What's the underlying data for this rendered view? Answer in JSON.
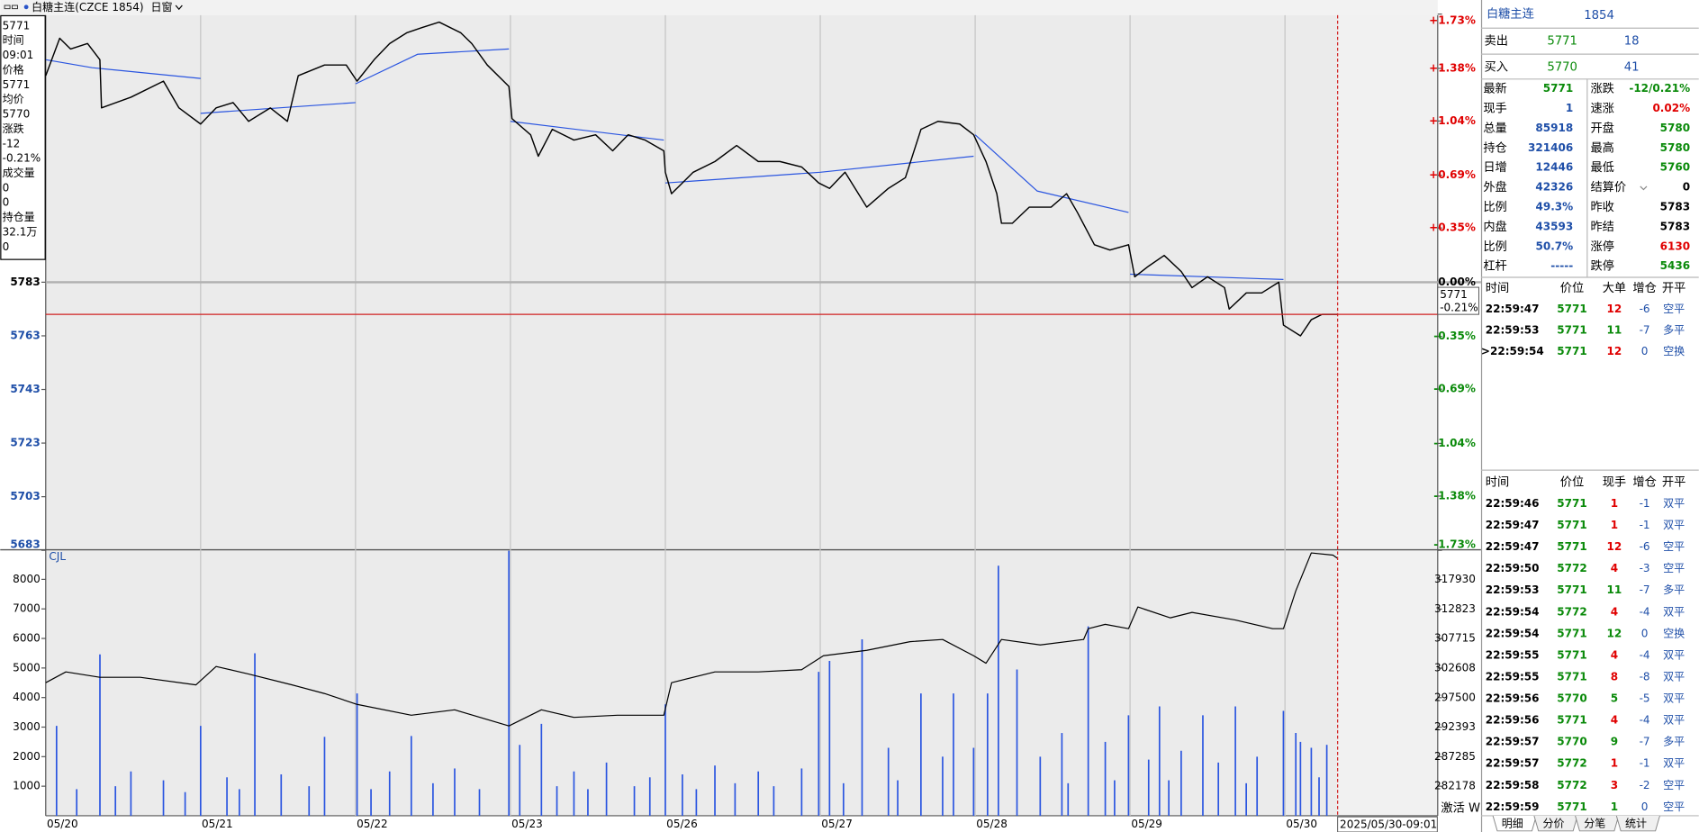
{
  "toolbar": {
    "title": "白糖主连(CZCE 1854)",
    "window_menu": "日窗"
  },
  "info_box": {
    "rows": [
      "5771",
      "时间",
      "09:01",
      "价格",
      "5771",
      "均价",
      "5770",
      "涨跌",
      "-12",
      "-0.21%",
      "成交量",
      "0",
      "0",
      "持仓量",
      "32.1万",
      "0"
    ]
  },
  "chart": {
    "dates": [
      "05/20",
      "05/21",
      "05/22",
      "05/23",
      "05/26",
      "05/27",
      "05/28",
      "05/29",
      "05/30"
    ],
    "price_axis": {
      "ylim": [
        5683,
        5883
      ],
      "ticks": [
        5783,
        5763,
        5743,
        5723,
        5703,
        5683
      ]
    },
    "percent_axis": {
      "ylim": [
        -1.73,
        1.73
      ],
      "ticks": [
        {
          "value": 1.73,
          "label": "+1.73%"
        },
        {
          "value": 1.38,
          "label": "+1.38%"
        },
        {
          "value": 1.04,
          "label": "+1.04%"
        },
        {
          "value": 0.69,
          "label": "+0.69%"
        },
        {
          "value": 0.35,
          "label": "+0.35%"
        },
        {
          "value": 0,
          "label": "0.00%"
        },
        {
          "value": -0.35,
          "label": "-0.35%"
        },
        {
          "value": -0.69,
          "label": "-0.69%"
        },
        {
          "value": -1.04,
          "label": "-1.04%"
        },
        {
          "value": -1.38,
          "label": "-1.38%"
        },
        {
          "value": -1.73,
          "label": "-1.73%"
        }
      ]
    },
    "cursor": {
      "price": 5771,
      "change": "-0.21%",
      "time": "2025/05/30-09:01"
    },
    "price_series": {
      "x": [
        0,
        0.09,
        0.16,
        0.27,
        0.35,
        0.36,
        0.55,
        0.76,
        0.86,
        1.0,
        1.1,
        1.21,
        1.31,
        1.45,
        1.56,
        1.63,
        1.8,
        1.94,
        2.01,
        2.12,
        2.22,
        2.33,
        2.43,
        2.54,
        2.68,
        2.75,
        2.85,
        2.99,
        3.01,
        3.13,
        3.18,
        3.27,
        3.41,
        3.55,
        3.66,
        3.76,
        3.87,
        3.99,
        4.0,
        4.04,
        4.18,
        4.32,
        4.46,
        4.6,
        4.74,
        4.88,
        4.99,
        5.06,
        5.16,
        5.3,
        5.44,
        5.55,
        5.65,
        5.76,
        5.9,
        5.99,
        6.07,
        6.14,
        6.17,
        6.24,
        6.35,
        6.49,
        6.59,
        6.66,
        6.77,
        6.87,
        6.99,
        7.03,
        7.12,
        7.22,
        7.33,
        7.4,
        7.5,
        7.61,
        7.64,
        7.75,
        7.85,
        7.96,
        7.99,
        8.1,
        8.17,
        8.24,
        8.34
      ],
      "values": [
        5860,
        5874,
        5870,
        5872,
        5866,
        5848,
        5852,
        5858,
        5848,
        5842,
        5848,
        5850,
        5843,
        5848,
        5843,
        5860,
        5864,
        5864,
        5858,
        5866,
        5872,
        5876,
        5878,
        5880,
        5876,
        5872,
        5864,
        5856,
        5844,
        5838,
        5830,
        5840,
        5836,
        5838,
        5832,
        5838,
        5836,
        5832,
        5824,
        5816,
        5824,
        5828,
        5834,
        5828,
        5828,
        5826,
        5820,
        5818,
        5824,
        5811,
        5818,
        5822,
        5840,
        5843,
        5842,
        5838,
        5828,
        5816,
        5805,
        5805,
        5811,
        5811,
        5816,
        5809,
        5797,
        5795,
        5797,
        5785,
        5789,
        5793,
        5787,
        5781,
        5785,
        5781,
        5773,
        5779,
        5779,
        5783,
        5767,
        5763,
        5769,
        5771,
        5771
      ]
    },
    "average_series": {
      "x": [
        0,
        0.3,
        1.0,
        null,
        1.0,
        2.0,
        null,
        2.0,
        2.4,
        2.99,
        null,
        3.0,
        3.99,
        null,
        4.0,
        5.0,
        5.99,
        null,
        6.0,
        6.4,
        6.99,
        null,
        7.0,
        7.99
      ],
      "values": [
        5866,
        5863,
        5859,
        null,
        5846,
        5850,
        null,
        5857,
        5868,
        5870,
        null,
        5843,
        5836,
        null,
        5820,
        5824,
        5830,
        null,
        5838,
        5817,
        5809,
        null,
        5786,
        5784
      ]
    },
    "volume_pane": {
      "label": "CJL",
      "ylim": [
        0,
        9000
      ],
      "ticks": [
        8000,
        7000,
        6000,
        5000,
        4000,
        3000,
        2000,
        1000
      ],
      "oi_ylim": [
        277071,
        323082
      ],
      "oi_ticks": [
        317930,
        312823,
        307715,
        302608,
        297500,
        292393,
        287285,
        282178
      ]
    },
    "volume": {
      "x": [
        0.07,
        0.2,
        0.35,
        0.45,
        0.55,
        0.76,
        0.9,
        1.0,
        1.17,
        1.25,
        1.35,
        1.52,
        1.7,
        1.8,
        2.01,
        2.1,
        2.22,
        2.36,
        2.5,
        2.64,
        2.8,
        2.99,
        3.06,
        3.2,
        3.3,
        3.41,
        3.5,
        3.62,
        3.8,
        3.9,
        4.0,
        4.11,
        4.2,
        4.32,
        4.45,
        4.6,
        4.7,
        4.88,
        4.99,
        5.06,
        5.15,
        5.27,
        5.44,
        5.5,
        5.65,
        5.79,
        5.86,
        5.99,
        6.08,
        6.15,
        6.27,
        6.42,
        6.56,
        6.6,
        6.73,
        6.84,
        6.9,
        6.99,
        7.12,
        7.19,
        7.25,
        7.33,
        7.47,
        7.57,
        7.68,
        7.75,
        7.82,
        7.99,
        8.07,
        8.1,
        8.17,
        8.22,
        8.27
      ],
      "values": [
        3040,
        900,
        5460,
        1000,
        1500,
        1200,
        800,
        3040,
        1300,
        900,
        5500,
        1400,
        1000,
        2670,
        4140,
        900,
        1500,
        2700,
        1100,
        1600,
        900,
        8970,
        2400,
        3110,
        1000,
        1500,
        900,
        1800,
        1000,
        1300,
        3770,
        1400,
        900,
        1700,
        1100,
        1500,
        1000,
        1600,
        4870,
        5240,
        1100,
        5970,
        2300,
        1200,
        4140,
        2000,
        4140,
        2300,
        4140,
        8460,
        4950,
        2000,
        2800,
        1100,
        6410,
        2500,
        1200,
        3400,
        1900,
        3700,
        1200,
        2200,
        3400,
        1800,
        3700,
        1100,
        2000,
        3550,
        2800,
        2500,
        2300,
        1300,
        2400
      ]
    },
    "open_interest": {
      "x": [
        0,
        0.13,
        0.35,
        0.61,
        0.97,
        1.1,
        1.31,
        1.59,
        1.8,
        2.01,
        2.36,
        2.64,
        2.99,
        3.2,
        3.41,
        3.69,
        3.99,
        4.04,
        4.32,
        4.6,
        4.88,
        5.02,
        5.3,
        5.58,
        5.79,
        5.99,
        6.07,
        6.17,
        6.42,
        6.7,
        6.73,
        6.84,
        6.99,
        7.05,
        7.26,
        7.4,
        7.68,
        7.92,
        7.99,
        8.07,
        8.17,
        8.31,
        8.34
      ],
      "values": [
        300083,
        301954,
        301019,
        301019,
        299709,
        302889,
        301580,
        299709,
        298212,
        296341,
        294471,
        295406,
        292600,
        295406,
        294096,
        294471,
        294471,
        300083,
        301954,
        301954,
        302328,
        304760,
        305696,
        307193,
        307566,
        304760,
        303451,
        307566,
        306631,
        307566,
        309438,
        310185,
        309438,
        313180,
        311309,
        312244,
        310934,
        309438,
        309438,
        315985,
        322532,
        322158,
        321599
      ]
    },
    "watermark": "激活 Windows"
  },
  "quote": {
    "name": "白糖主连",
    "code": "1854",
    "sell": [
      "卖出",
      "5771",
      "18"
    ],
    "buy": [
      "买入",
      "5770",
      "41"
    ],
    "rows": [
      [
        "最新",
        "5771",
        "涨跌",
        "-12/0.21%"
      ],
      [
        "现手",
        "1",
        "速涨",
        "0.02%"
      ],
      [
        "总量",
        "85918",
        "开盘",
        "5780"
      ],
      [
        "持仓",
        "321406",
        "最高",
        "5780"
      ],
      [
        "日增",
        "12446",
        "最低",
        "5760"
      ],
      [
        "外盘",
        "42326",
        "结算价",
        "0"
      ],
      [
        "比例",
        "49.3%",
        "昨收",
        "5783"
      ],
      [
        "内盘",
        "43593",
        "昨结",
        "5783"
      ],
      [
        "比例",
        "50.7%",
        "涨停",
        "6130"
      ],
      [
        "杠杆",
        "-----",
        "跌停",
        "5436"
      ]
    ],
    "big_trades": {
      "header": [
        "时间",
        "价位",
        "大单",
        "增仓",
        "开平"
      ],
      "rows": [
        [
          "22:59:47",
          "5771",
          "12",
          "-6",
          "空平"
        ],
        [
          "22:59:53",
          "5771",
          "11",
          "-7",
          "多平"
        ],
        [
          ">22:59:54",
          "5771",
          "12",
          "0",
          "空换"
        ]
      ]
    },
    "trades": {
      "header": [
        "时间",
        "价位",
        "现手",
        "增仓",
        "开平"
      ],
      "rows": [
        [
          "22:59:46",
          "5771",
          "1",
          "-1",
          "双平"
        ],
        [
          "22:59:47",
          "5771",
          "1",
          "-1",
          "双平"
        ],
        [
          "22:59:47",
          "5771",
          "12",
          "-6",
          "空平"
        ],
        [
          "22:59:50",
          "5772",
          "4",
          "-3",
          "空平"
        ],
        [
          "22:59:53",
          "5771",
          "11",
          "-7",
          "多平"
        ],
        [
          "22:59:54",
          "5772",
          "4",
          "-4",
          "双平"
        ],
        [
          "22:59:54",
          "5771",
          "12",
          "0",
          "空换"
        ],
        [
          "22:59:55",
          "5771",
          "4",
          "-4",
          "双平"
        ],
        [
          "22:59:55",
          "5771",
          "8",
          "-8",
          "双平"
        ],
        [
          "22:59:56",
          "5770",
          "5",
          "-5",
          "双平"
        ],
        [
          "22:59:56",
          "5771",
          "4",
          "-4",
          "双平"
        ],
        [
          "22:59:57",
          "5770",
          "9",
          "-7",
          "多平"
        ],
        [
          "22:59:57",
          "5772",
          "1",
          "-1",
          "双平"
        ],
        [
          "22:59:58",
          "5772",
          "3",
          "-2",
          "空平"
        ],
        [
          "22:59:59",
          "5771",
          "1",
          "0",
          "空平"
        ]
      ]
    },
    "tabs": [
      "明细",
      "分价",
      "分笔",
      "统计"
    ]
  }
}
